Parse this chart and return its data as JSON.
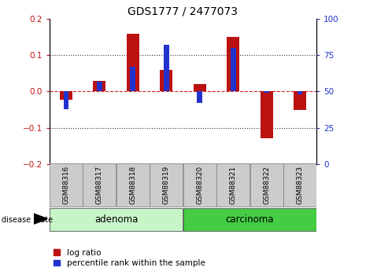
{
  "title": "GDS1777 / 2477073",
  "samples": [
    "GSM88316",
    "GSM88317",
    "GSM88318",
    "GSM88319",
    "GSM88320",
    "GSM88321",
    "GSM88322",
    "GSM88323"
  ],
  "log_ratio": [
    -0.022,
    0.03,
    0.16,
    0.06,
    0.02,
    0.15,
    -0.13,
    -0.05
  ],
  "percentile": [
    38,
    57,
    67,
    82,
    42,
    80,
    49,
    48
  ],
  "groups": [
    {
      "label": "adenoma",
      "start": 0,
      "end": 4,
      "color": "#c8f5c8"
    },
    {
      "label": "carcinoma",
      "start": 4,
      "end": 8,
      "color": "#44cc44"
    }
  ],
  "log_ratio_color": "#bb1111",
  "percentile_color": "#2233cc",
  "ylim_left": [
    -0.2,
    0.2
  ],
  "ylim_right": [
    0,
    100
  ],
  "zero_line_color": "#cc2222",
  "dotted_line_color": "#333333",
  "title_fontsize": 10,
  "tick_label_fontsize": 7.5,
  "sample_label_fontsize": 6.5,
  "group_label_fontsize": 8.5,
  "legend_fontsize": 7.5,
  "sample_box_color": "#cccccc",
  "background_color": "#ffffff"
}
